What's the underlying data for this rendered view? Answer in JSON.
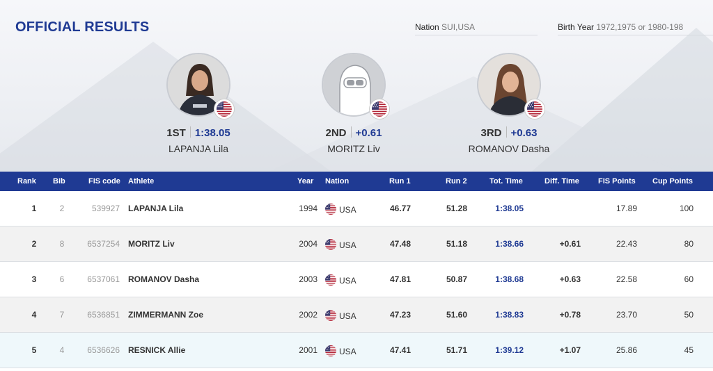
{
  "header": {
    "title": "OFFICIAL RESULTS"
  },
  "filters": {
    "nation_label": "Nation",
    "nation_value": "SUI,USA",
    "birth_label": "Birth Year",
    "birth_value": "1972,1975 or 1980-198"
  },
  "podium": [
    {
      "place": "1ST",
      "time": "1:38.05",
      "name": "LAPANJA Lila",
      "flag": "usa-flag-icon"
    },
    {
      "place": "2ND",
      "time": "+0.61",
      "name": "MORITZ Liv",
      "flag": "usa-flag-icon"
    },
    {
      "place": "3RD",
      "time": "+0.63",
      "name": "ROMANOV Dasha",
      "flag": "usa-flag-icon"
    }
  ],
  "table": {
    "headers": {
      "rank": "Rank",
      "bib": "Bib",
      "fis_code": "FIS code",
      "athlete": "Athlete",
      "year": "Year",
      "nation": "Nation",
      "run1": "Run 1",
      "run2": "Run 2",
      "tot_time": "Tot. Time",
      "diff_time": "Diff. Time",
      "fis_points": "FIS Points",
      "cup_points": "Cup Points"
    },
    "rows": [
      {
        "rank": "1",
        "bib": "2",
        "fis_code": "539927",
        "athlete": "LAPANJA Lila",
        "year": "1994",
        "nation": "USA",
        "run1": "46.77",
        "run2": "51.28",
        "tot_time": "1:38.05",
        "diff_time": "",
        "fis_points": "17.89",
        "cup_points": "100"
      },
      {
        "rank": "2",
        "bib": "8",
        "fis_code": "6537254",
        "athlete": "MORITZ Liv",
        "year": "2004",
        "nation": "USA",
        "run1": "47.48",
        "run2": "51.18",
        "tot_time": "1:38.66",
        "diff_time": "+0.61",
        "fis_points": "22.43",
        "cup_points": "80"
      },
      {
        "rank": "3",
        "bib": "6",
        "fis_code": "6537061",
        "athlete": "ROMANOV Dasha",
        "year": "2003",
        "nation": "USA",
        "run1": "47.81",
        "run2": "50.87",
        "tot_time": "1:38.68",
        "diff_time": "+0.63",
        "fis_points": "22.58",
        "cup_points": "60"
      },
      {
        "rank": "4",
        "bib": "7",
        "fis_code": "6536851",
        "athlete": "ZIMMERMANN Zoe",
        "year": "2002",
        "nation": "USA",
        "run1": "47.23",
        "run2": "51.60",
        "tot_time": "1:38.83",
        "diff_time": "+0.78",
        "fis_points": "23.70",
        "cup_points": "50"
      },
      {
        "rank": "5",
        "bib": "4",
        "fis_code": "6536626",
        "athlete": "RESNICK Allie",
        "year": "2001",
        "nation": "USA",
        "run1": "47.41",
        "run2": "51.71",
        "tot_time": "1:39.12",
        "diff_time": "+1.07",
        "fis_points": "25.86",
        "cup_points": "45"
      }
    ]
  },
  "colors": {
    "accent": "#1f3a93",
    "row_alt": "#f2f2f2",
    "row_highlight": "#eff8fb"
  }
}
